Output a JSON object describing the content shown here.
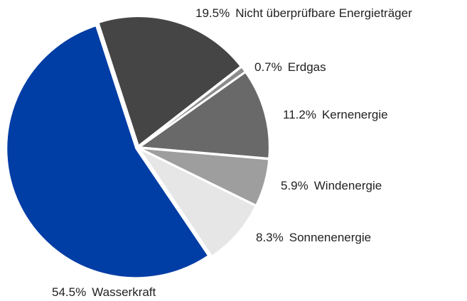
{
  "chart_data": {
    "type": "pie",
    "categories": [
      "Wasserkraft",
      "Nicht überprüfbare Energieträger",
      "Erdgas",
      "Kernenergie",
      "Windenergie",
      "Sonnenenergie"
    ],
    "values": [
      54.5,
      19.5,
      0.7,
      11.2,
      5.9,
      8.3
    ],
    "value_labels": [
      "54.5%",
      "19.5%",
      "0.7%",
      "11.2%",
      "5.9%",
      "8.3%"
    ],
    "colors": [
      "#003da5",
      "#454545",
      "#8c8c8c",
      "#696969",
      "#9e9e9e",
      "#e6e6e6"
    ]
  }
}
